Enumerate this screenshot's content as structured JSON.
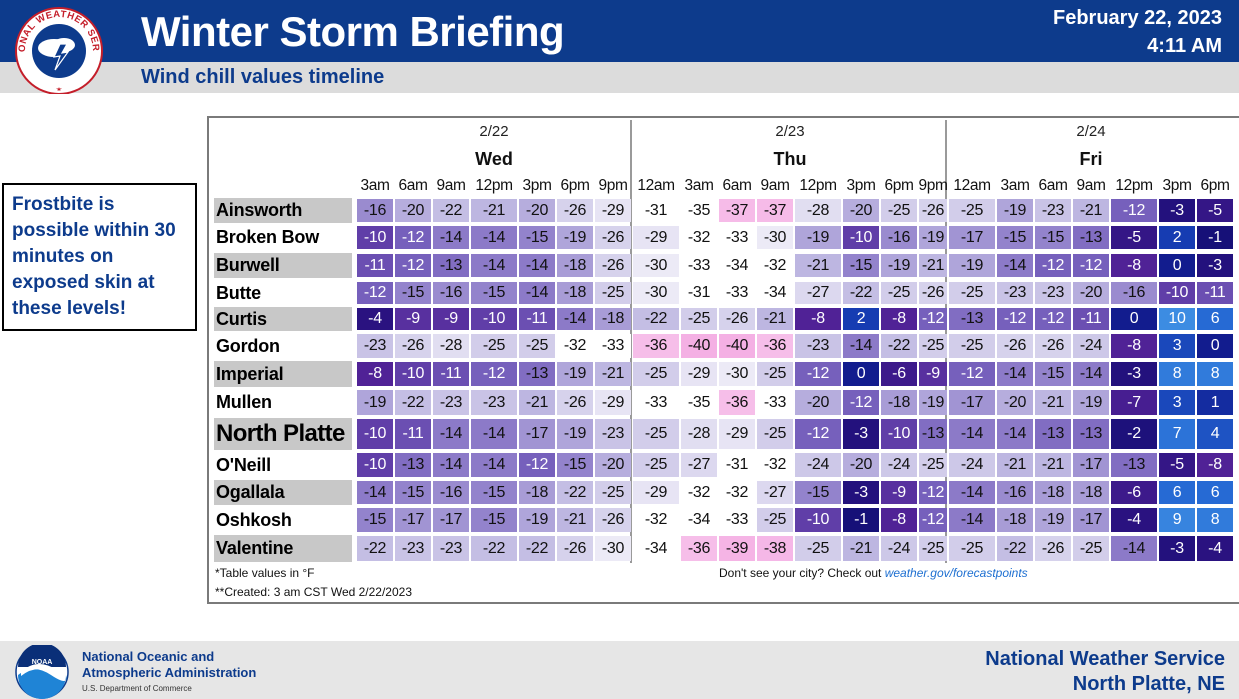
{
  "header": {
    "title": "Winter Storm Briefing",
    "subtitle": "Wind chill values timeline",
    "date": "February 22, 2023",
    "time": "4:11 AM",
    "logo_text": "NATIONAL WEATHER SERVICE"
  },
  "callout": {
    "text": "Frostbite is possible within 30 minutes on exposed skin at these levels!"
  },
  "days": [
    {
      "date": "2/22",
      "name": "Wed"
    },
    {
      "date": "2/23",
      "name": "Thu"
    },
    {
      "date": "2/24",
      "name": "Fri"
    }
  ],
  "hours": [
    "3am",
    "6am",
    "9am",
    "12pm",
    "3pm",
    "6pm",
    "9pm",
    "12am",
    "3am",
    "6am",
    "9am",
    "12pm",
    "3pm",
    "6pm",
    "9pm",
    "12am",
    "3am",
    "6am",
    "9am",
    "12pm",
    "3pm",
    "6pm"
  ],
  "cities": [
    {
      "name": "Ainsworth",
      "values": [
        -16,
        -20,
        -22,
        -21,
        -20,
        -26,
        -29,
        -31,
        -35,
        -37,
        -37,
        -28,
        -20,
        -25,
        -26,
        -25,
        -19,
        -23,
        -21,
        -12,
        -3,
        -5
      ]
    },
    {
      "name": "Broken Bow",
      "values": [
        -10,
        -12,
        -14,
        -14,
        -15,
        -19,
        -26,
        -29,
        -32,
        -33,
        -30,
        -19,
        -10,
        -16,
        -19,
        -17,
        -15,
        -15,
        -13,
        -5,
        2,
        -1
      ]
    },
    {
      "name": "Burwell",
      "values": [
        -11,
        -12,
        -13,
        -14,
        -14,
        -18,
        -26,
        -30,
        -33,
        -34,
        -32,
        -21,
        -15,
        -19,
        -21,
        -19,
        -14,
        -12,
        -12,
        -8,
        0,
        -3
      ]
    },
    {
      "name": "Butte",
      "values": [
        -12,
        -15,
        -16,
        -15,
        -14,
        -18,
        -25,
        -30,
        -31,
        -33,
        -34,
        -27,
        -22,
        -25,
        -26,
        -25,
        -23,
        -23,
        -20,
        -16,
        -10,
        -11
      ]
    },
    {
      "name": "Curtis",
      "values": [
        -4,
        -9,
        -9,
        -10,
        -11,
        -14,
        -18,
        -22,
        -25,
        -26,
        -21,
        -8,
        2,
        -8,
        -12,
        -13,
        -12,
        -12,
        -11,
        0,
        10,
        6
      ]
    },
    {
      "name": "Gordon",
      "values": [
        -23,
        -26,
        -28,
        -25,
        -25,
        -32,
        -33,
        -36,
        -40,
        -40,
        -36,
        -23,
        -14,
        -22,
        -25,
        -25,
        -26,
        -26,
        -24,
        -8,
        3,
        0
      ]
    },
    {
      "name": "Imperial",
      "values": [
        -8,
        -10,
        -11,
        -12,
        -13,
        -19,
        -21,
        -25,
        -29,
        -30,
        -25,
        -12,
        0,
        -6,
        -9,
        -12,
        -14,
        -15,
        -14,
        -3,
        8,
        8
      ]
    },
    {
      "name": "Mullen",
      "values": [
        -19,
        -22,
        -23,
        -23,
        -21,
        -26,
        -29,
        -33,
        -35,
        -36,
        -33,
        -20,
        -12,
        -18,
        -19,
        -17,
        -20,
        -21,
        -19,
        -7,
        3,
        1
      ]
    },
    {
      "name": "North Platte",
      "values": [
        -10,
        -11,
        -14,
        -14,
        -17,
        -19,
        -23,
        -25,
        -28,
        -29,
        -25,
        -12,
        -3,
        -10,
        -13,
        -14,
        -14,
        -13,
        -13,
        -2,
        7,
        4
      ]
    },
    {
      "name": "O'Neill",
      "values": [
        -10,
        -13,
        -14,
        -14,
        -12,
        -15,
        -20,
        -25,
        -27,
        -31,
        -32,
        -24,
        -20,
        -24,
        -25,
        -24,
        -21,
        -21,
        -17,
        -13,
        -5,
        -8
      ]
    },
    {
      "name": "Ogallala",
      "values": [
        -14,
        -15,
        -16,
        -15,
        -18,
        -22,
        -25,
        -29,
        -32,
        -32,
        -27,
        -15,
        -3,
        -9,
        -12,
        -14,
        -16,
        -18,
        -18,
        -6,
        6,
        6
      ]
    },
    {
      "name": "Oshkosh",
      "values": [
        -15,
        -17,
        -17,
        -15,
        -19,
        -21,
        -26,
        -32,
        -34,
        -33,
        -25,
        -10,
        -1,
        -8,
        -12,
        -14,
        -18,
        -19,
        -17,
        -4,
        9,
        8
      ]
    },
    {
      "name": "Valentine",
      "values": [
        -22,
        -23,
        -23,
        -22,
        -22,
        -26,
        -30,
        -34,
        -36,
        -39,
        -38,
        -25,
        -21,
        -24,
        -25,
        -25,
        -22,
        -26,
        -25,
        -14,
        -3,
        -4
      ]
    }
  ],
  "footnotes": {
    "units": "*Table values in °F",
    "created": "**Created: 3 am CST Wed 2/22/2023",
    "city_prompt": "Don't see your city? Check out ",
    "city_link": "weather.gov/forecastpoints"
  },
  "footer": {
    "org_line1": "National Oceanic and",
    "org_line2": "Atmospheric Administration",
    "org_line3": "U.S. Department of Commerce",
    "noaa_logo_text": "NOAA",
    "office_line1": "National Weather Service",
    "office_line2": "North Platte, NE"
  },
  "colors": {
    "header_blue": "#0d3b8c",
    "link_blue": "#1d6fd1",
    "pink_extreme": "#f4b8e4",
    "white_cold": "#ffffff",
    "navy_warm": "#120f7a",
    "bright_blue": "#2f6fd8"
  }
}
